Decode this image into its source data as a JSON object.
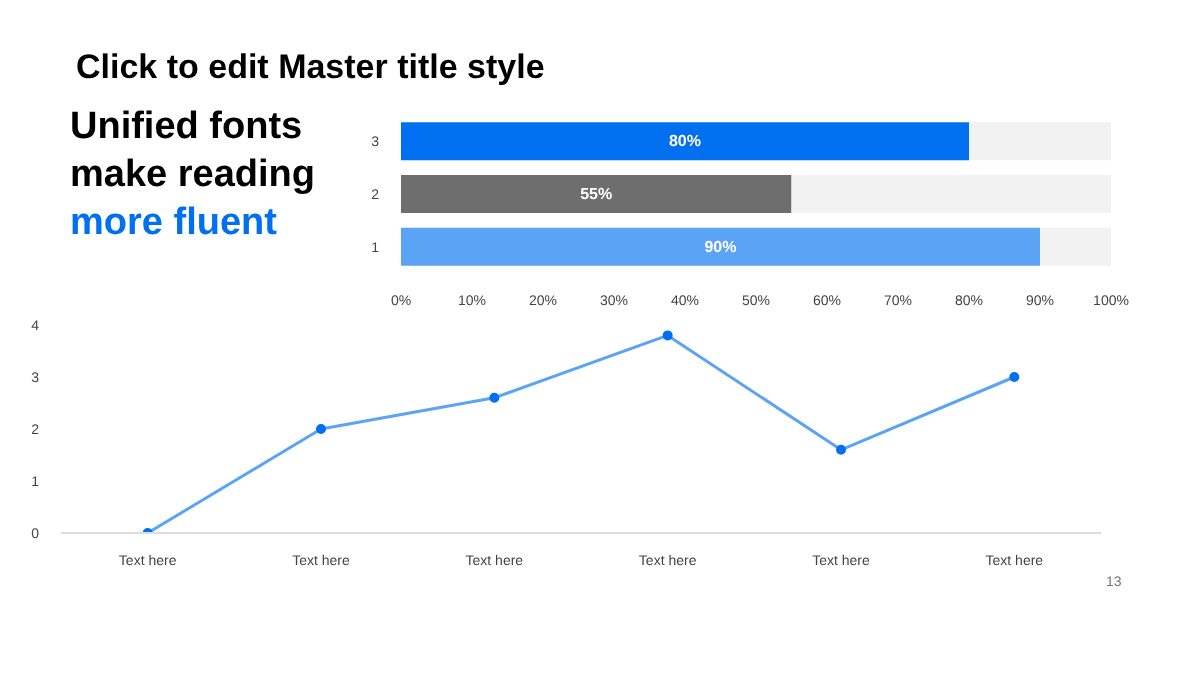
{
  "chart_data": [
    {
      "type": "bar",
      "orientation": "horizontal",
      "stacked": true,
      "title": "Click to edit Master title style",
      "annotations": [
        "Unified fonts make reading",
        "more fluent"
      ],
      "categories": [
        "3",
        "2",
        "1"
      ],
      "series": [
        {
          "colors": [
            "#0070f0",
            "#6e6e6e",
            "#5ba3f5"
          ],
          "values": [
            80,
            55,
            90
          ],
          "value_labels": [
            "80%",
            "55%",
            "90%"
          ]
        },
        {
          "color": "#f2f2f2",
          "values": [
            20,
            45,
            10
          ]
        }
      ],
      "xlim": [
        0,
        100
      ],
      "xticks": [
        {
          "value": 0,
          "label": "0%"
        },
        {
          "value": 10,
          "label": "10%"
        },
        {
          "value": 20,
          "label": "20%"
        },
        {
          "value": 30,
          "label": "30%"
        },
        {
          "value": 40,
          "label": "40%"
        },
        {
          "value": 50,
          "label": "50%"
        },
        {
          "value": 60,
          "label": "60%"
        },
        {
          "value": 70,
          "label": "70%"
        },
        {
          "value": 80,
          "label": "80%"
        },
        {
          "value": 90,
          "label": "90%"
        },
        {
          "value": 100,
          "label": "100%"
        }
      ],
      "grid": false
    },
    {
      "type": "line",
      "categories": [
        "Text here",
        "Text here",
        "Text here",
        "Text here",
        "Text here",
        "Text here"
      ],
      "series": [
        {
          "color": "#5ba3f5",
          "values": [
            0,
            2,
            2.6,
            3.8,
            1.6,
            3
          ]
        }
      ],
      "ylim": [
        0,
        4
      ],
      "yticks": [
        0,
        1,
        2,
        3,
        4
      ],
      "marker": "circle",
      "line_style": "solid",
      "grid": false,
      "annotations": [
        "13"
      ]
    }
  ]
}
